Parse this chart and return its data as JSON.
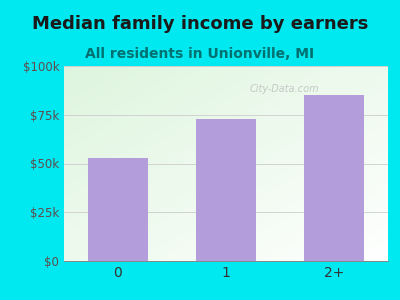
{
  "title": "Median family income by earners",
  "subtitle": "All residents in Unionville, MI",
  "categories": [
    "0",
    "1",
    "2+"
  ],
  "values": [
    53000,
    73000,
    85000
  ],
  "bar_color": "#b39ddb",
  "fig_bg_color": "#00e8f0",
  "title_color": "#1a1a1a",
  "subtitle_color": "#007070",
  "ytick_color": "#5d4d4d",
  "xtick_color": "#333333",
  "ylim": [
    0,
    100000
  ],
  "yticks": [
    0,
    25000,
    50000,
    75000,
    100000
  ],
  "ytick_labels": [
    "$0",
    "$25k",
    "$50k",
    "$75k",
    "$100k"
  ],
  "watermark": "City-Data.com",
  "title_fontsize": 13,
  "subtitle_fontsize": 10,
  "grid_color": "#cccccc"
}
